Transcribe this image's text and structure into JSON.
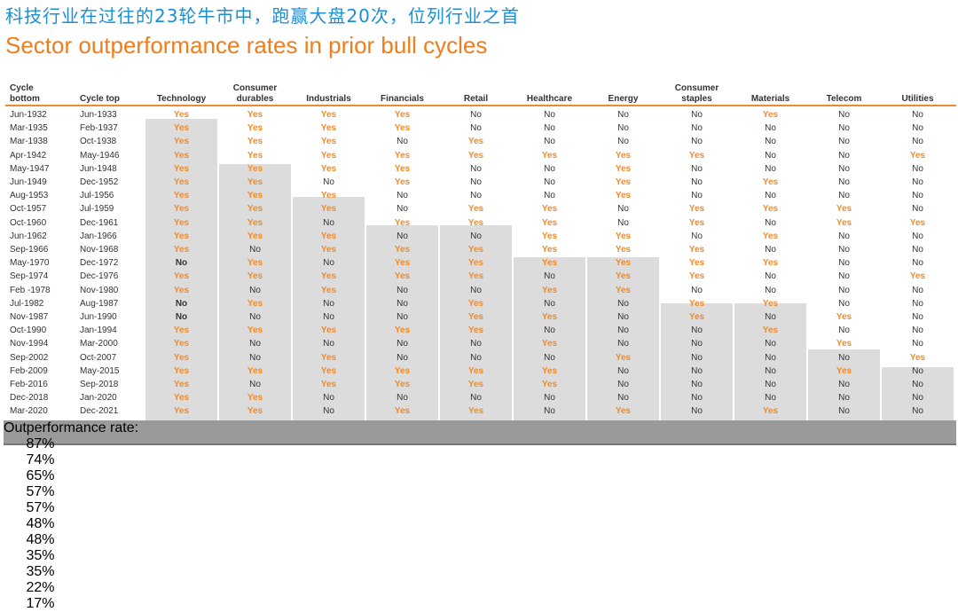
{
  "title_cn": "科技行业在过往的23轮牛市中，跑赢大盘20次，位列行业之首",
  "title_en": "Sector outperformance rates in prior bull cycles",
  "colors": {
    "yes": "#f28a28",
    "title_cn": "#1b8fd2",
    "title_en": "#f07d1a",
    "shade": "#dcdcdc",
    "footer": "#9a9a9a"
  },
  "headers": {
    "bottom": "Cycle\nbottom",
    "top": "Cycle top",
    "sectors": [
      "Technology",
      "Consumer\ndurables",
      "Industrials",
      "Financials",
      "Retail",
      "Healthcare",
      "Energy",
      "Consumer\nstaples",
      "Materials",
      "Telecom",
      "Utilities"
    ]
  },
  "rows": [
    [
      "Jun-1932",
      "Jun-1933",
      "Yes",
      "Yes",
      "Yes",
      "Yes",
      "No",
      "No",
      "No",
      "No",
      "Yes",
      "No",
      "No"
    ],
    [
      "Mar-1935",
      "Feb-1937",
      "Yes",
      "Yes",
      "Yes",
      "Yes",
      "No",
      "No",
      "No",
      "No",
      "No",
      "No",
      "No"
    ],
    [
      "Mar-1938",
      "Oct-1938",
      "Yes",
      "Yes",
      "Yes",
      "No",
      "Yes",
      "No",
      "No",
      "No",
      "No",
      "No",
      "No"
    ],
    [
      "Apr-1942",
      "May-1946",
      "Yes",
      "Yes",
      "Yes",
      "Yes",
      "Yes",
      "Yes",
      "Yes",
      "Yes",
      "No",
      "No",
      "Yes"
    ],
    [
      "May-1947",
      "Jun-1948",
      "Yes",
      "Yes",
      "Yes",
      "Yes",
      "No",
      "No",
      "Yes",
      "No",
      "No",
      "No",
      "No"
    ],
    [
      "Jun-1949",
      "Dec-1952",
      "Yes",
      "Yes",
      "No",
      "Yes",
      "No",
      "No",
      "Yes",
      "No",
      "Yes",
      "No",
      "No"
    ],
    [
      "Aug-1953",
      "Jul-1956",
      "Yes",
      "Yes",
      "Yes",
      "No",
      "No",
      "No",
      "Yes",
      "No",
      "No",
      "No",
      "No"
    ],
    [
      "Oct-1957",
      "Jul-1959",
      "Yes",
      "Yes",
      "Yes",
      "No",
      "Yes",
      "Yes",
      "No",
      "Yes",
      "Yes",
      "Yes",
      "No"
    ],
    [
      "Oct-1960",
      "Dec-1961",
      "Yes",
      "Yes",
      "No",
      "Yes",
      "Yes",
      "Yes",
      "No",
      "Yes",
      "No",
      "Yes",
      "Yes"
    ],
    [
      "Jun-1962",
      "Jan-1966",
      "Yes",
      "Yes",
      "Yes",
      "No",
      "No",
      "Yes",
      "Yes",
      "No",
      "Yes",
      "No",
      "No"
    ],
    [
      "Sep-1966",
      "Nov-1968",
      "Yes",
      "No",
      "Yes",
      "Yes",
      "Yes",
      "Yes",
      "Yes",
      "Yes",
      "No",
      "No",
      "No"
    ],
    [
      "May-1970",
      "Dec-1972",
      "No",
      "Yes",
      "No",
      "Yes",
      "Yes",
      "Yes",
      "Yes",
      "Yes",
      "Yes",
      "No",
      "No"
    ],
    [
      "Sep-1974",
      "Dec-1976",
      "Yes",
      "Yes",
      "Yes",
      "Yes",
      "Yes",
      "No",
      "Yes",
      "Yes",
      "No",
      "No",
      "Yes"
    ],
    [
      "Feb -1978",
      "Nov-1980",
      "Yes",
      "No",
      "Yes",
      "No",
      "No",
      "Yes",
      "Yes",
      "No",
      "No",
      "No",
      "No"
    ],
    [
      "Jul-1982",
      "Aug-1987",
      "No",
      "Yes",
      "No",
      "No",
      "Yes",
      "No",
      "No",
      "Yes",
      "Yes",
      "No",
      "No"
    ],
    [
      "Nov-1987",
      "Jun-1990",
      "No",
      "No",
      "No",
      "No",
      "Yes",
      "Yes",
      "No",
      "Yes",
      "No",
      "Yes",
      "No"
    ],
    [
      "Oct-1990",
      "Jan-1994",
      "Yes",
      "Yes",
      "Yes",
      "Yes",
      "Yes",
      "No",
      "No",
      "No",
      "Yes",
      "No",
      "No"
    ],
    [
      "Nov-1994",
      "Mar-2000",
      "Yes",
      "No",
      "No",
      "No",
      "No",
      "Yes",
      "No",
      "No",
      "No",
      "Yes",
      "No"
    ],
    [
      "Sep-2002",
      "Oct-2007",
      "Yes",
      "No",
      "Yes",
      "No",
      "No",
      "No",
      "Yes",
      "No",
      "No",
      "No",
      "Yes"
    ],
    [
      "Feb-2009",
      "May-2015",
      "Yes",
      "Yes",
      "Yes",
      "Yes",
      "Yes",
      "Yes",
      "No",
      "No",
      "No",
      "Yes",
      "No"
    ],
    [
      "Feb-2016",
      "Sep-2018",
      "Yes",
      "No",
      "Yes",
      "Yes",
      "Yes",
      "Yes",
      "No",
      "No",
      "No",
      "No",
      "No"
    ],
    [
      "Dec-2018",
      "Jan-2020",
      "Yes",
      "Yes",
      "No",
      "No",
      "No",
      "No",
      "No",
      "No",
      "No",
      "No",
      "No"
    ],
    [
      "Mar-2020",
      "Dec-2021",
      "Yes",
      "Yes",
      "No",
      "Yes",
      "Yes",
      "No",
      "Yes",
      "No",
      "Yes",
      "No",
      "No"
    ]
  ],
  "footer": {
    "label": "Outperformance rate:",
    "rates": [
      "87%",
      "74%",
      "65%",
      "57%",
      "57%",
      "48%",
      "48%",
      "35%",
      "35%",
      "22%",
      "17%"
    ]
  }
}
